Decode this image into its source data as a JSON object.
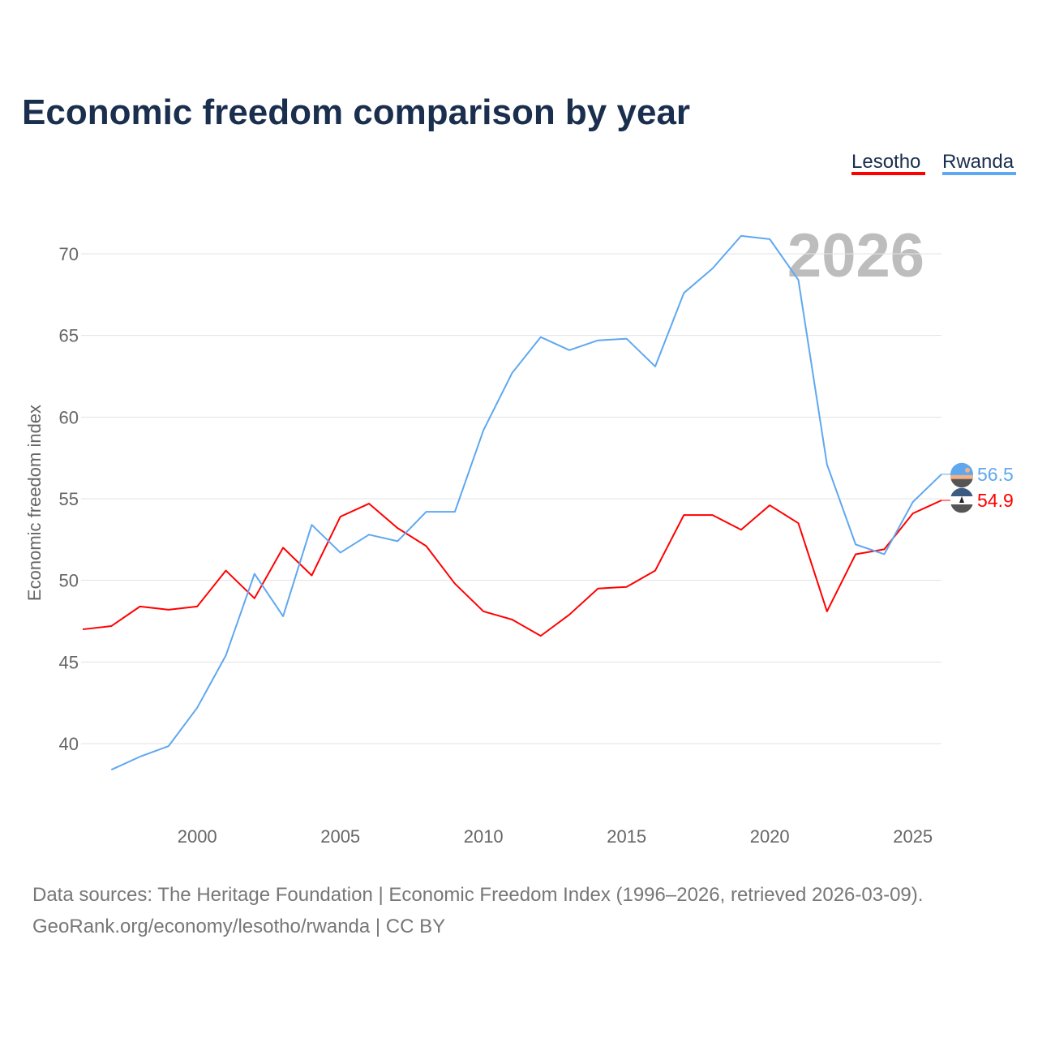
{
  "chart_data": {
    "type": "line",
    "title": "Economic freedom comparison by year",
    "xlabel": "",
    "ylabel": "Economic freedom index",
    "xlim": [
      1996,
      2026
    ],
    "ylim": [
      35,
      72
    ],
    "yticks": [
      40,
      45,
      50,
      55,
      60,
      65,
      70
    ],
    "xticks": [
      2000,
      2005,
      2010,
      2015,
      2020,
      2025
    ],
    "grid": true,
    "legend_placement": "top-right",
    "year_watermark": "2026",
    "series": [
      {
        "name": "Lesotho",
        "color": "#ff0000",
        "end_label": "54.9",
        "x": [
          1996,
          1997,
          1998,
          1999,
          2000,
          2001,
          2002,
          2003,
          2004,
          2005,
          2006,
          2007,
          2008,
          2009,
          2010,
          2011,
          2012,
          2013,
          2014,
          2015,
          2016,
          2017,
          2018,
          2019,
          2020,
          2021,
          2022,
          2023,
          2024,
          2025,
          2026
        ],
        "values": [
          47.0,
          47.2,
          48.4,
          48.2,
          48.4,
          50.6,
          48.9,
          52.0,
          50.3,
          53.9,
          54.7,
          53.2,
          52.1,
          49.8,
          48.1,
          47.6,
          46.6,
          47.9,
          49.5,
          49.6,
          50.6,
          54.0,
          54.0,
          53.1,
          54.6,
          53.5,
          48.1,
          51.6,
          51.9,
          54.1,
          54.9
        ]
      },
      {
        "name": "Rwanda",
        "color": "#5fa8f0",
        "end_label": "56.5",
        "x": [
          1997,
          1998,
          1999,
          2000,
          2001,
          2002,
          2003,
          2004,
          2005,
          2006,
          2007,
          2008,
          2009,
          2010,
          2011,
          2012,
          2013,
          2014,
          2015,
          2016,
          2017,
          2018,
          2019,
          2020,
          2021,
          2022,
          2023,
          2024,
          2025,
          2026
        ],
        "values": [
          38.4,
          39.2,
          39.85,
          42.2,
          45.4,
          50.4,
          47.8,
          53.4,
          51.7,
          52.8,
          52.4,
          54.2,
          54.2,
          59.2,
          62.7,
          64.9,
          64.1,
          64.7,
          64.8,
          63.1,
          67.6,
          69.1,
          71.1,
          70.9,
          68.4,
          57.1,
          52.2,
          51.6,
          54.8,
          56.5
        ]
      }
    ]
  },
  "footer": {
    "line1": "Data sources: The Heritage Foundation | Economic Freedom Index (1996–2026, retrieved 2026-03-09).",
    "line2": "GeoRank.org/economy/lesotho/rwanda | CC BY"
  }
}
